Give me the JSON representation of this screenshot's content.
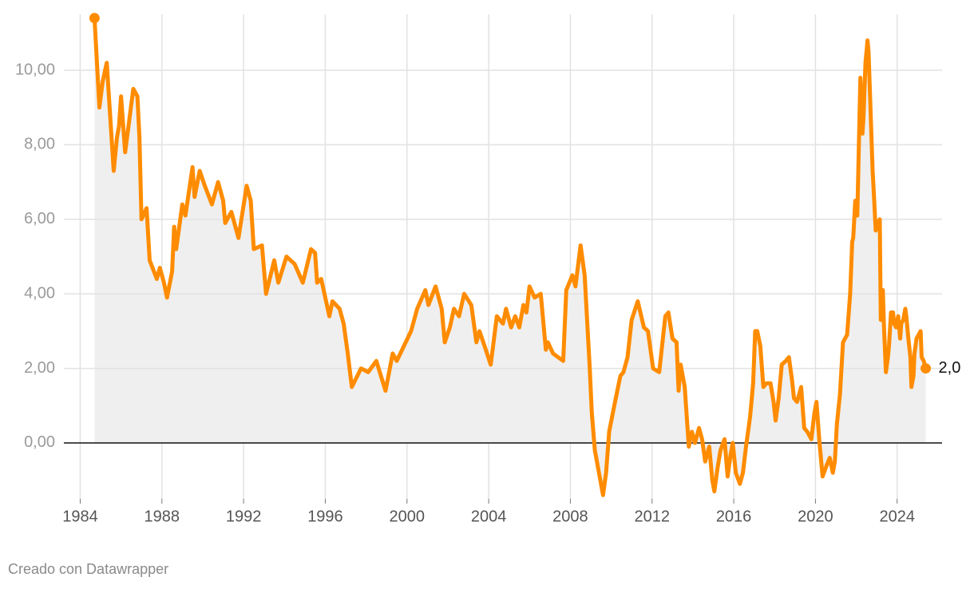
{
  "chart_data": {
    "type": "area-line",
    "credit": "Creado con Datawrapper",
    "color": "#ff8c00",
    "area_color": "#efefef",
    "grid": true,
    "xlim": [
      1983.2,
      2026.2
    ],
    "xticks": [
      1984,
      1988,
      1992,
      1996,
      2000,
      2004,
      2008,
      2012,
      2016,
      2020,
      2024
    ],
    "ylim": [
      -1.5,
      11.5
    ],
    "yticks": [
      {
        "value": 0,
        "label": "0,00"
      },
      {
        "value": 2,
        "label": "2,00"
      },
      {
        "value": 4,
        "label": "4,00"
      },
      {
        "value": 6,
        "label": "6,00"
      },
      {
        "value": 8,
        "label": "8,00"
      },
      {
        "value": 10,
        "label": "10,00"
      }
    ],
    "x": [
      1984.7,
      1984.94,
      1985.1,
      1985.3,
      1985.64,
      1985.8,
      1985.9,
      1986.0,
      1986.2,
      1986.6,
      1986.8,
      1986.9,
      1987.0,
      1987.25,
      1987.4,
      1987.75,
      1987.9,
      1988.1,
      1988.25,
      1988.5,
      1988.6,
      1988.7,
      1989.0,
      1989.15,
      1989.5,
      1989.6,
      1989.85,
      1990.1,
      1990.45,
      1990.75,
      1991.0,
      1991.1,
      1991.4,
      1991.75,
      1992.15,
      1992.35,
      1992.5,
      1992.9,
      1993.1,
      1993.5,
      1993.7,
      1994.1,
      1994.5,
      1994.9,
      1995.3,
      1995.5,
      1995.6,
      1995.8,
      1996.2,
      1996.35,
      1996.7,
      1996.9,
      1997.1,
      1997.3,
      1997.75,
      1998.1,
      1998.5,
      1998.95,
      1999.3,
      1999.5,
      2000.2,
      2000.5,
      2000.9,
      2001.05,
      2001.4,
      2001.7,
      2001.85,
      2002.1,
      2002.3,
      2002.55,
      2002.8,
      2003.15,
      2003.4,
      2003.55,
      2003.8,
      2004.1,
      2004.4,
      2004.7,
      2004.85,
      2005.1,
      2005.3,
      2005.5,
      2005.7,
      2005.85,
      2006.0,
      2006.25,
      2006.55,
      2006.8,
      2006.9,
      2007.15,
      2007.65,
      2007.8,
      2008.1,
      2008.25,
      2008.5,
      2008.7,
      2008.95,
      2009.05,
      2009.2,
      2009.6,
      2009.75,
      2009.9,
      2010.15,
      2010.45,
      2010.6,
      2010.8,
      2011.0,
      2011.3,
      2011.6,
      2011.8,
      2012.05,
      2012.35,
      2012.65,
      2012.8,
      2013.0,
      2013.2,
      2013.3,
      2013.4,
      2013.6,
      2013.8,
      2013.95,
      2014.1,
      2014.3,
      2014.45,
      2014.6,
      2014.8,
      2014.95,
      2015.05,
      2015.2,
      2015.35,
      2015.55,
      2015.7,
      2015.85,
      2015.95,
      2016.1,
      2016.3,
      2016.45,
      2016.6,
      2016.8,
      2016.95,
      2017.05,
      2017.15,
      2017.3,
      2017.45,
      2017.6,
      2017.8,
      2017.95,
      2018.05,
      2018.2,
      2018.35,
      2018.55,
      2018.7,
      2018.85,
      2018.95,
      2019.1,
      2019.3,
      2019.45,
      2019.6,
      2019.8,
      2019.95,
      2020.05,
      2020.2,
      2020.35,
      2020.55,
      2020.7,
      2020.85,
      2020.95,
      2021.05,
      2021.2,
      2021.35,
      2021.55,
      2021.7,
      2021.8,
      2021.85,
      2021.95,
      2022.05,
      2022.2,
      2022.3,
      2022.35,
      2022.45,
      2022.55,
      2022.6,
      2022.7,
      2022.8,
      2022.85,
      2022.95,
      2023.05,
      2023.15,
      2023.2,
      2023.3,
      2023.35,
      2023.45,
      2023.55,
      2023.6,
      2023.7,
      2023.8,
      2023.85,
      2023.95,
      2024.05,
      2024.15,
      2024.2,
      2024.3,
      2024.4,
      2024.45,
      2024.55,
      2024.65,
      2024.7,
      2024.8,
      2024.85,
      2024.95,
      2025.05,
      2025.15,
      2025.2,
      2025.3,
      2025.4
    ],
    "values": [
      11.4,
      9.0,
      9.7,
      10.2,
      7.3,
      8.2,
      8.5,
      9.3,
      7.8,
      9.5,
      9.3,
      8.2,
      6.0,
      6.3,
      4.9,
      4.4,
      4.7,
      4.3,
      3.9,
      4.6,
      5.8,
      5.2,
      6.4,
      6.1,
      7.4,
      6.6,
      7.3,
      6.9,
      6.4,
      7.0,
      6.5,
      5.9,
      6.2,
      5.5,
      6.9,
      6.5,
      5.2,
      5.3,
      4.0,
      4.9,
      4.3,
      5.0,
      4.8,
      4.3,
      5.2,
      5.1,
      4.3,
      4.4,
      3.4,
      3.8,
      3.6,
      3.2,
      2.4,
      1.5,
      2.0,
      1.9,
      2.2,
      1.4,
      2.4,
      2.2,
      3.0,
      3.6,
      4.1,
      3.7,
      4.2,
      3.6,
      2.7,
      3.1,
      3.6,
      3.4,
      4.0,
      3.7,
      2.7,
      3.0,
      2.6,
      2.1,
      3.4,
      3.2,
      3.6,
      3.1,
      3.4,
      3.1,
      3.7,
      3.5,
      4.2,
      3.9,
      4.0,
      2.5,
      2.7,
      2.4,
      2.2,
      4.1,
      4.5,
      4.2,
      5.3,
      4.5,
      2.0,
      0.8,
      -0.2,
      -1.4,
      -0.8,
      0.3,
      1.0,
      1.8,
      1.9,
      2.3,
      3.3,
      3.8,
      3.1,
      3.0,
      2.0,
      1.9,
      3.4,
      3.5,
      2.8,
      2.7,
      1.4,
      2.1,
      1.5,
      -0.1,
      0.3,
      0.0,
      0.4,
      0.1,
      -0.5,
      -0.1,
      -1.0,
      -1.3,
      -0.7,
      -0.2,
      0.1,
      -0.9,
      -0.3,
      0.0,
      -0.8,
      -1.1,
      -0.8,
      -0.1,
      0.7,
      1.6,
      3.0,
      3.0,
      2.6,
      1.5,
      1.6,
      1.6,
      1.1,
      0.6,
      1.2,
      2.1,
      2.2,
      2.3,
      1.7,
      1.2,
      1.1,
      1.5,
      0.4,
      0.3,
      0.1,
      0.8,
      1.1,
      0.0,
      -0.9,
      -0.6,
      -0.4,
      -0.8,
      -0.5,
      0.5,
      1.3,
      2.7,
      2.9,
      4.0,
      5.4,
      5.5,
      6.5,
      6.1,
      9.8,
      8.3,
      8.7,
      10.2,
      10.8,
      10.5,
      8.9,
      7.3,
      6.8,
      5.7,
      5.9,
      6.0,
      3.3,
      4.1,
      3.2,
      1.9,
      2.3,
      2.6,
      3.5,
      3.5,
      3.2,
      3.1,
      3.4,
      2.8,
      3.2,
      3.3,
      3.6,
      3.4,
      2.8,
      2.3,
      1.5,
      1.8,
      2.4,
      2.8,
      2.9,
      3.0,
      2.3,
      2.2,
      2.0
    ],
    "value_labels": [
      null,
      null,
      null,
      null,
      null,
      null,
      null,
      null,
      null,
      null,
      null,
      null,
      null,
      null,
      null,
      null,
      null,
      null,
      null,
      null,
      null,
      null,
      null,
      null,
      null,
      null,
      null,
      null,
      null,
      null,
      null,
      null,
      null,
      null,
      null,
      null,
      null,
      null,
      null,
      null,
      null,
      null,
      null,
      null,
      null,
      null,
      null,
      null,
      null,
      null,
      null,
      null,
      null,
      null,
      null,
      null,
      null,
      null,
      null,
      null,
      null,
      null,
      null,
      null,
      null,
      null,
      null,
      null,
      null,
      null,
      null,
      null,
      null,
      null,
      null,
      null,
      null,
      null,
      null,
      null,
      null,
      null,
      null,
      null,
      null,
      null,
      null,
      null,
      null,
      null,
      null,
      null,
      null,
      null,
      null,
      null,
      null,
      null,
      null,
      null,
      null,
      null,
      null,
      null,
      null,
      null,
      null,
      null,
      null,
      null,
      null,
      null,
      null,
      null,
      null,
      null,
      null,
      null,
      null,
      null,
      null,
      null,
      null,
      null,
      null,
      null,
      null,
      null,
      null,
      null,
      null,
      null,
      null,
      null,
      null,
      null,
      null,
      null,
      null,
      null,
      null,
      null,
      null,
      null,
      null,
      null,
      null,
      null,
      null,
      null,
      null,
      null,
      null,
      null,
      null,
      null,
      null,
      null,
      null,
      null,
      null,
      null,
      null,
      null,
      null,
      null,
      null,
      null,
      null,
      null,
      null,
      null,
      null,
      null,
      null,
      null,
      null,
      null,
      null,
      null,
      null,
      null,
      null,
      null,
      null,
      null,
      null,
      null,
      null,
      null,
      null,
      null,
      null,
      null,
      null,
      null,
      null,
      null,
      null,
      null,
      null,
      null,
      null,
      null,
      null,
      null,
      null,
      null,
      null,
      null,
      null,
      null,
      null,
      null,
      "2,0"
    ]
  }
}
